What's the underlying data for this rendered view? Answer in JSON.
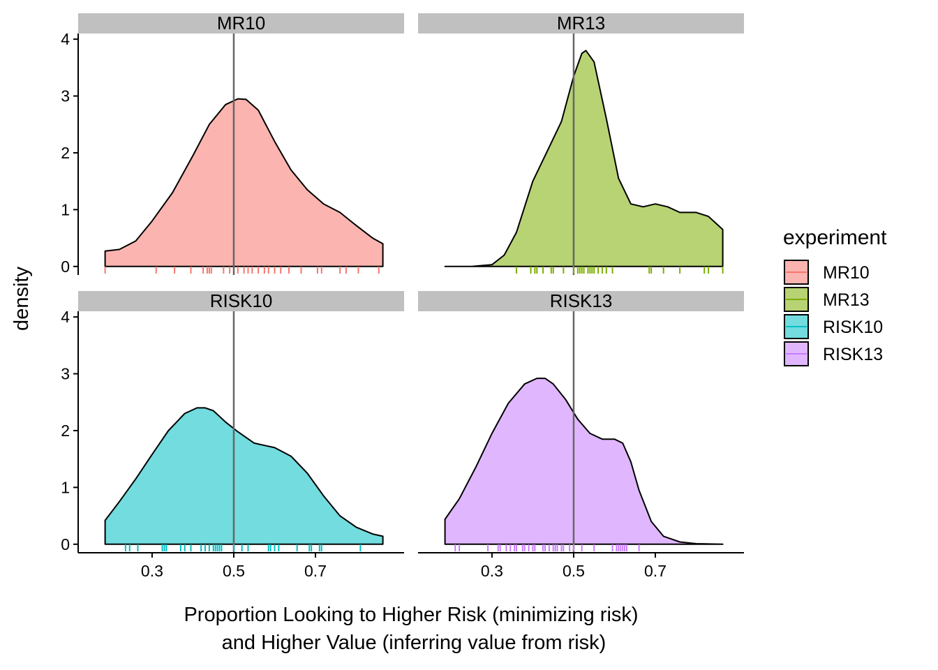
{
  "chart_data": {
    "type": "area",
    "subtype": "faceted density with rug",
    "facets": [
      "MR10",
      "MR13",
      "RISK10",
      "RISK13"
    ],
    "xlabel_line1": "Proportion Looking to Higher Risk (minimizing risk)",
    "xlabel_line2": "and Higher Value (inferring value from risk)",
    "ylabel": "density",
    "xlim": [
      0.119,
      0.917
    ],
    "ylim": [
      -0.15,
      4.1
    ],
    "x_ticks": [
      "0.3",
      "0.5",
      "0.7"
    ],
    "y_ticks": [
      "0",
      "1",
      "2",
      "3",
      "4"
    ],
    "reference_line_x": 0.5,
    "legend": {
      "title": "experiment",
      "position": "right",
      "entries": [
        "MR10",
        "MR13",
        "RISK10",
        "RISK13"
      ]
    },
    "colors": {
      "MR10": "#F8766D",
      "MR13": "#7CAE00",
      "RISK10": "#00BFC4",
      "RISK13": "#C77CFF",
      "strip_bg": "#C0C0C0",
      "reference_line": "#666666"
    },
    "series": [
      {
        "name": "MR10",
        "x": [
          0.185,
          0.22,
          0.26,
          0.3,
          0.35,
          0.4,
          0.44,
          0.48,
          0.51,
          0.53,
          0.56,
          0.6,
          0.64,
          0.68,
          0.72,
          0.76,
          0.8,
          0.84,
          0.865
        ],
        "density": [
          0.27,
          0.3,
          0.45,
          0.8,
          1.3,
          1.95,
          2.5,
          2.85,
          2.95,
          2.94,
          2.75,
          2.2,
          1.7,
          1.35,
          1.1,
          0.95,
          0.72,
          0.5,
          0.4
        ],
        "rug": [
          0.185,
          0.31,
          0.355,
          0.395,
          0.425,
          0.435,
          0.44,
          0.445,
          0.475,
          0.49,
          0.51,
          0.525,
          0.535,
          0.545,
          0.56,
          0.575,
          0.585,
          0.6,
          0.615,
          0.635,
          0.665,
          0.705,
          0.715,
          0.76,
          0.775,
          0.805,
          0.855
        ]
      },
      {
        "name": "MR13",
        "x": [
          0.185,
          0.25,
          0.3,
          0.33,
          0.36,
          0.4,
          0.44,
          0.47,
          0.5,
          0.52,
          0.53,
          0.55,
          0.58,
          0.61,
          0.64,
          0.67,
          0.7,
          0.73,
          0.76,
          0.8,
          0.83,
          0.865
        ],
        "density": [
          0.0,
          0.0,
          0.03,
          0.2,
          0.6,
          1.5,
          2.1,
          2.55,
          3.35,
          3.75,
          3.8,
          3.6,
          2.6,
          1.55,
          1.1,
          1.05,
          1.1,
          1.05,
          0.95,
          0.95,
          0.88,
          0.65
        ],
        "rug": [
          0.36,
          0.395,
          0.405,
          0.41,
          0.425,
          0.445,
          0.45,
          0.475,
          0.5,
          0.51,
          0.515,
          0.52,
          0.525,
          0.535,
          0.54,
          0.545,
          0.55,
          0.56,
          0.57,
          0.58,
          0.595,
          0.685,
          0.69,
          0.72,
          0.76,
          0.82,
          0.83,
          0.865
        ]
      },
      {
        "name": "RISK10",
        "x": [
          0.185,
          0.22,
          0.26,
          0.3,
          0.34,
          0.38,
          0.41,
          0.43,
          0.45,
          0.48,
          0.51,
          0.55,
          0.6,
          0.64,
          0.68,
          0.72,
          0.76,
          0.8,
          0.84,
          0.865
        ],
        "density": [
          0.42,
          0.75,
          1.15,
          1.58,
          2.0,
          2.3,
          2.4,
          2.4,
          2.35,
          2.15,
          1.98,
          1.78,
          1.7,
          1.55,
          1.25,
          0.85,
          0.5,
          0.3,
          0.18,
          0.14
        ],
        "rug": [
          0.235,
          0.245,
          0.265,
          0.325,
          0.33,
          0.335,
          0.37,
          0.38,
          0.395,
          0.42,
          0.43,
          0.44,
          0.45,
          0.455,
          0.46,
          0.465,
          0.47,
          0.5,
          0.52,
          0.535,
          0.585,
          0.59,
          0.6,
          0.61,
          0.655,
          0.685,
          0.69,
          0.71,
          0.715,
          0.81
        ]
      },
      {
        "name": "RISK13",
        "x": [
          0.185,
          0.22,
          0.26,
          0.3,
          0.34,
          0.38,
          0.41,
          0.43,
          0.45,
          0.48,
          0.51,
          0.54,
          0.57,
          0.6,
          0.62,
          0.64,
          0.66,
          0.69,
          0.72,
          0.76,
          0.8,
          0.865
        ],
        "density": [
          0.44,
          0.8,
          1.35,
          1.95,
          2.48,
          2.82,
          2.92,
          2.92,
          2.82,
          2.55,
          2.2,
          1.95,
          1.85,
          1.85,
          1.78,
          1.45,
          0.95,
          0.4,
          0.14,
          0.04,
          0.01,
          0.0
        ],
        "rug": [
          0.21,
          0.22,
          0.29,
          0.315,
          0.32,
          0.335,
          0.345,
          0.355,
          0.36,
          0.375,
          0.38,
          0.39,
          0.4,
          0.405,
          0.425,
          0.43,
          0.44,
          0.45,
          0.455,
          0.46,
          0.47,
          0.475,
          0.49,
          0.5,
          0.52,
          0.55,
          0.595,
          0.605,
          0.61,
          0.615,
          0.62,
          0.625,
          0.63,
          0.66
        ]
      }
    ]
  }
}
